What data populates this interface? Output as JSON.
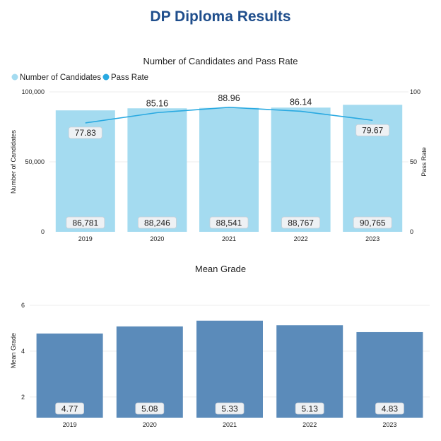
{
  "page": {
    "title": "DP Diploma Results"
  },
  "chart_data": [
    {
      "type": "bar",
      "title": "Number of Candidates and Pass Rate",
      "categories": [
        "2019",
        "2020",
        "2021",
        "2022",
        "2023"
      ],
      "series": [
        {
          "name": "Number of Candidates",
          "type": "bar",
          "axis": "left",
          "values": [
            86781,
            88246,
            88541,
            88767,
            90765
          ],
          "labels": [
            "86,781",
            "88,246",
            "88,541",
            "88,767",
            "90,765"
          ],
          "color": "#a4dbf0"
        },
        {
          "name": "Pass Rate",
          "type": "line",
          "axis": "right",
          "values": [
            77.83,
            85.16,
            88.96,
            86.14,
            79.67
          ],
          "labels": [
            "77.83",
            "85.16",
            "88.96",
            "86.14",
            "79.67"
          ],
          "color": "#29a9e1"
        }
      ],
      "ylabel": "Number of Candidates",
      "y2label": "Pass Rate",
      "ylim": [
        0,
        100000
      ],
      "y2lim": [
        0,
        100
      ],
      "yticks": [
        "0",
        "50,000",
        "100,000"
      ],
      "y2ticks": [
        "0",
        "50",
        "100"
      ],
      "legend": "top-left",
      "grid": true
    },
    {
      "type": "bar",
      "title": "Mean Grade",
      "categories": [
        "2019",
        "2020",
        "2021",
        "2022",
        "2023"
      ],
      "series": [
        {
          "name": "Mean Grade",
          "values": [
            4.77,
            5.08,
            5.33,
            5.13,
            4.83
          ],
          "labels": [
            "4.77",
            "5.08",
            "5.33",
            "5.13",
            "4.83"
          ],
          "color": "#5b8bba"
        }
      ],
      "ylabel": "Mean Grade",
      "ylim": [
        1.1,
        6
      ],
      "yticks": [
        "2",
        "4",
        "6"
      ],
      "grid": true
    }
  ]
}
